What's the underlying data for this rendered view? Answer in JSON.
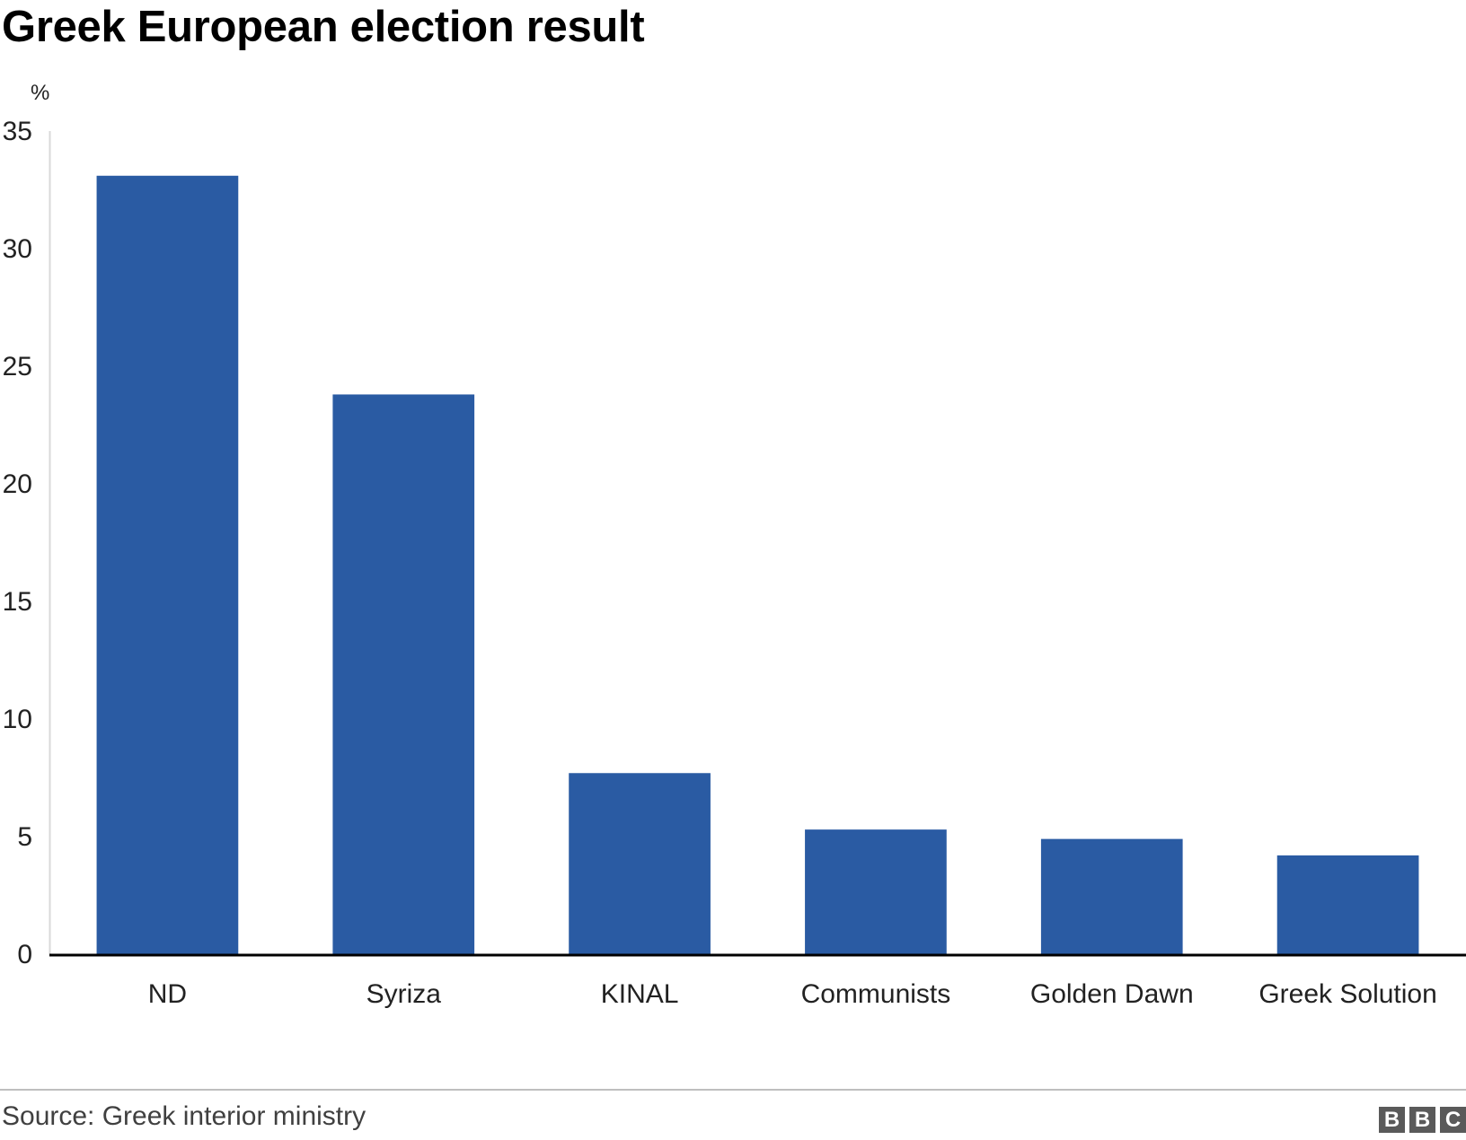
{
  "chart_data": {
    "type": "bar",
    "title": "Greek European election result",
    "ylabel": "%",
    "xlabel": "",
    "categories": [
      "ND",
      "Syriza",
      "KINAL",
      "Communists",
      "Golden Dawn",
      "Greek Solution"
    ],
    "values": [
      33.1,
      23.8,
      7.7,
      5.3,
      4.9,
      4.2
    ],
    "ylim": [
      0,
      35
    ],
    "yticks": [
      0,
      5,
      10,
      15,
      20,
      25,
      30,
      35
    ],
    "grid": false,
    "legend": "none",
    "bar_color": "#2a5ba3"
  },
  "footer": {
    "source": "Source: Greek interior ministry",
    "logo_letters": [
      "B",
      "B",
      "C"
    ]
  }
}
